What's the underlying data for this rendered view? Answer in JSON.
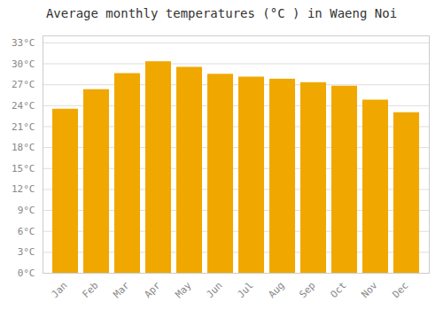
{
  "chart_data": {
    "type": "bar",
    "title": "Average monthly temperatures (°C ) in Waeng Noi",
    "categories": [
      "Jan",
      "Feb",
      "Mar",
      "Apr",
      "May",
      "Jun",
      "Jul",
      "Aug",
      "Sep",
      "Oct",
      "Nov",
      "Dec"
    ],
    "values": [
      23.5,
      26.3,
      28.6,
      30.3,
      29.5,
      28.5,
      28.1,
      27.8,
      27.3,
      26.8,
      24.8,
      23.0
    ],
    "color": "#F0A800",
    "ylim": [
      0,
      34
    ],
    "yticks": [
      {
        "value": 0,
        "label": "0°C"
      },
      {
        "value": 3,
        "label": "3°C"
      },
      {
        "value": 6,
        "label": "6°C"
      },
      {
        "value": 9,
        "label": "9°C"
      },
      {
        "value": 12,
        "label": "12°C"
      },
      {
        "value": 15,
        "label": "15°C"
      },
      {
        "value": 18,
        "label": "18°C"
      },
      {
        "value": 21,
        "label": "21°C"
      },
      {
        "value": 24,
        "label": "24°C"
      },
      {
        "value": 27,
        "label": "27°C"
      },
      {
        "value": 30,
        "label": "30°C"
      },
      {
        "value": 33,
        "label": "33°C"
      }
    ],
    "grid": true
  }
}
